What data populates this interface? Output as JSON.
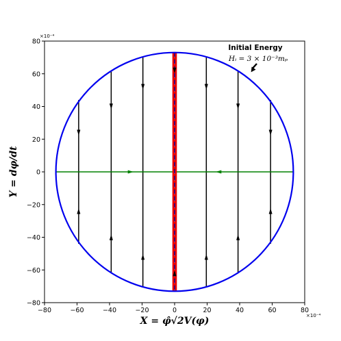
{
  "chart_data": {
    "type": "line",
    "title": "",
    "xlabel": "X = φ̂√2V(φ)",
    "ylabel": "Y = dφ/dt",
    "x_scale_note": "×10⁻⁴",
    "y_scale_note": "×10⁻⁴",
    "xlim": [
      -80,
      80
    ],
    "ylim": [
      -80,
      80
    ],
    "xticks": [
      -80,
      -60,
      -40,
      -20,
      0,
      20,
      40,
      60,
      80
    ],
    "yticks": [
      -80,
      -60,
      -40,
      -20,
      0,
      20,
      40,
      60,
      80
    ],
    "xtick_labels": [
      "−80",
      "−60",
      "−40",
      "−20",
      "0",
      "20",
      "40",
      "60",
      "80"
    ],
    "ytick_labels": [
      "−80",
      "−60",
      "−40",
      "−20",
      "0",
      "20",
      "40",
      "60",
      "80"
    ],
    "grid": false,
    "energy_circle": {
      "radius": 73,
      "color": "#0000ee"
    },
    "trajectories_upper": [
      {
        "x": -59,
        "y_top": 44,
        "y_bottom": 0,
        "arrow_y": 24,
        "direction": "down"
      },
      {
        "x": -39,
        "y_top": 62,
        "y_bottom": 0,
        "arrow_y": 40,
        "direction": "down"
      },
      {
        "x": -19.5,
        "y_top": 70,
        "y_bottom": 0,
        "arrow_y": 52,
        "direction": "down"
      },
      {
        "x": 19.5,
        "y_top": 70,
        "y_bottom": 0,
        "arrow_y": 52,
        "direction": "down"
      },
      {
        "x": 39,
        "y_top": 62,
        "y_bottom": 0,
        "arrow_y": 40,
        "direction": "down"
      },
      {
        "x": 59,
        "y_top": 44,
        "y_bottom": 0,
        "arrow_y": 24,
        "direction": "down"
      }
    ],
    "trajectories_lower": [
      {
        "x": -59,
        "y_top": 0,
        "y_bottom": -44,
        "arrow_y": -24,
        "direction": "up"
      },
      {
        "x": -39,
        "y_top": 0,
        "y_bottom": -62,
        "arrow_y": -40,
        "direction": "up"
      },
      {
        "x": -19.5,
        "y_top": 0,
        "y_bottom": -70,
        "arrow_y": -52,
        "direction": "up"
      },
      {
        "x": 19.5,
        "y_top": 0,
        "y_bottom": -70,
        "arrow_y": -52,
        "direction": "up"
      },
      {
        "x": 39,
        "y_top": 0,
        "y_bottom": -62,
        "arrow_y": -40,
        "direction": "up"
      },
      {
        "x": 59,
        "y_top": 0,
        "y_bottom": -44,
        "arrow_y": -24,
        "direction": "up"
      }
    ],
    "horizontal_line": {
      "y": 0,
      "x_start": -73,
      "x_end": 73,
      "color": "#008000",
      "arrows": [
        {
          "x": -27,
          "direction": "right"
        },
        {
          "x": 27,
          "direction": "left"
        }
      ]
    },
    "central_band": {
      "x": 0,
      "y_min": -73,
      "y_max": 73,
      "color": "#ee0000",
      "dash_color": "#0000aa"
    },
    "central_arrows": [
      {
        "y": 62,
        "direction": "down"
      },
      {
        "y": -62,
        "direction": "up"
      }
    ],
    "annotation": {
      "title": "Initial Energy",
      "equation": "Hᵢ = 3 × 10⁻³mₚ",
      "arrow_tip": [
        47,
        61
      ]
    }
  }
}
